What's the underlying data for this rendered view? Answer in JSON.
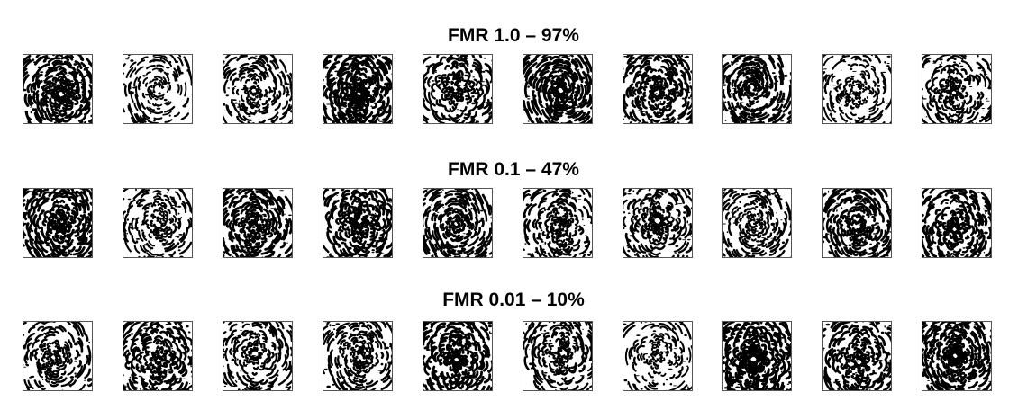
{
  "colors": {
    "ink": "#000000",
    "paper": "#ffffff",
    "frame": "#555555"
  },
  "rows": [
    {
      "title": "FMR 1.0 – 97%",
      "tiles": [
        {
          "density": 0.8,
          "orient": 0.6,
          "curl": 1.2
        },
        {
          "density": 0.35,
          "orient": 1.4,
          "curl": 0.6
        },
        {
          "density": 0.55,
          "orient": 0.2,
          "curl": 1.0
        },
        {
          "density": 0.95,
          "orient": 2.1,
          "curl": 1.5
        },
        {
          "density": 0.6,
          "orient": 1.0,
          "curl": 1.8
        },
        {
          "density": 0.85,
          "orient": 2.6,
          "curl": 0.9
        },
        {
          "density": 0.75,
          "orient": 0.4,
          "curl": 1.3
        },
        {
          "density": 0.8,
          "orient": 1.7,
          "curl": 0.7
        },
        {
          "density": 0.4,
          "orient": 0.9,
          "curl": 1.1
        },
        {
          "density": 0.55,
          "orient": 2.9,
          "curl": 1.6
        }
      ]
    },
    {
      "title": "FMR 0.1 – 47%",
      "tiles": [
        {
          "density": 0.85,
          "orient": 0.7,
          "curl": 1.4
        },
        {
          "density": 0.45,
          "orient": 1.2,
          "curl": 1.0
        },
        {
          "density": 0.8,
          "orient": 2.3,
          "curl": 1.2
        },
        {
          "density": 0.8,
          "orient": 0.1,
          "curl": 1.7
        },
        {
          "density": 0.7,
          "orient": 1.9,
          "curl": 0.8
        },
        {
          "density": 0.6,
          "orient": 2.7,
          "curl": 1.3
        },
        {
          "density": 0.55,
          "orient": 0.5,
          "curl": 1.5
        },
        {
          "density": 0.5,
          "orient": 1.5,
          "curl": 0.9
        },
        {
          "density": 0.75,
          "orient": 2.0,
          "curl": 1.1
        },
        {
          "density": 0.75,
          "orient": 0.3,
          "curl": 1.4
        }
      ]
    },
    {
      "title": "FMR 0.01 – 10%",
      "tiles": [
        {
          "density": 0.55,
          "orient": 1.1,
          "curl": 1.0
        },
        {
          "density": 0.65,
          "orient": 2.2,
          "curl": 1.6
        },
        {
          "density": 0.55,
          "orient": 0.8,
          "curl": 1.2
        },
        {
          "density": 0.55,
          "orient": 1.6,
          "curl": 0.9
        },
        {
          "density": 0.85,
          "orient": 2.8,
          "curl": 1.5
        },
        {
          "density": 0.55,
          "orient": 0.0,
          "curl": 1.3
        },
        {
          "density": 0.4,
          "orient": 1.3,
          "curl": 1.0
        },
        {
          "density": 0.95,
          "orient": 2.4,
          "curl": 1.8
        },
        {
          "density": 0.75,
          "orient": 0.6,
          "curl": 1.4
        },
        {
          "density": 0.85,
          "orient": 1.8,
          "curl": 1.1
        }
      ]
    }
  ]
}
